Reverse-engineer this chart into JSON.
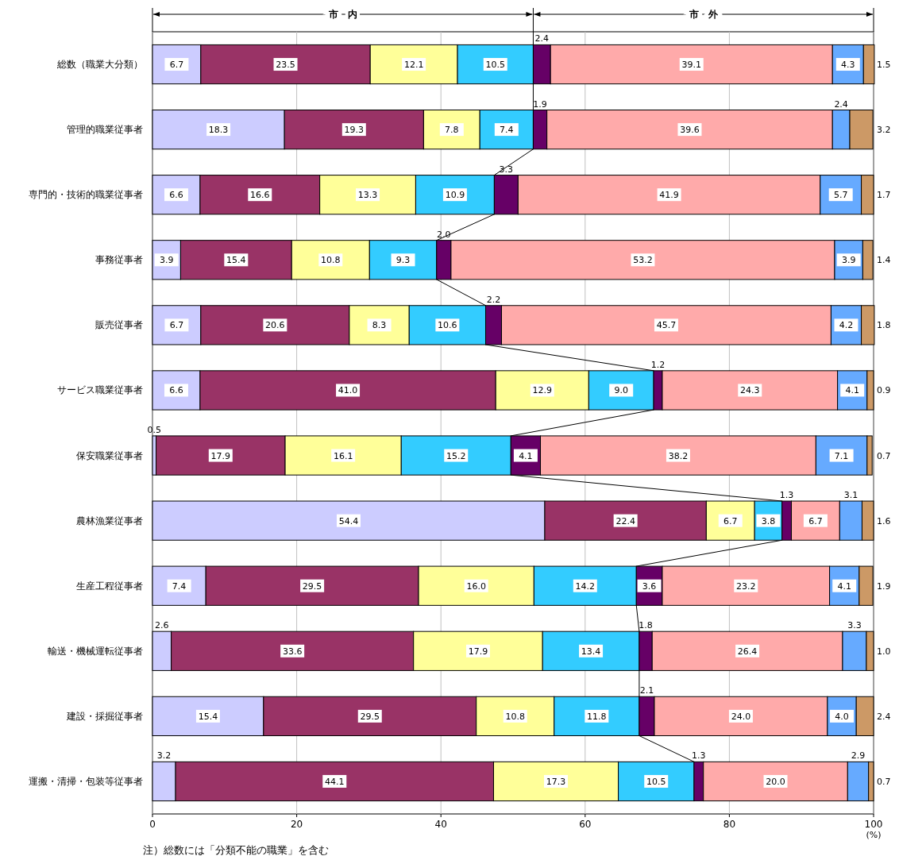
{
  "chart_data": {
    "type": "bar",
    "orientation": "horizontal",
    "stacked": true,
    "grid": "x",
    "categories": [
      "総数（職業大分類）",
      "管理的職業従事者",
      "専門的・技術的職業従事者",
      "事務従事者",
      "販売従事者",
      "サービス職業従事者",
      "保安職業従事者",
      "農林漁業従事者",
      "生産工程従事者",
      "輸送・機械運転従事者",
      "建設・採掘従事者",
      "運搬・清掃・包装等従事者"
    ],
    "xlim": [
      0,
      100
    ],
    "xticks": [
      0,
      20,
      40,
      60,
      80,
      100
    ],
    "xlabel": "(%)",
    "annotations": [
      "市　内",
      "市　外",
      "注）総数には「分類不能の職業」を含む"
    ],
    "series": [
      {
        "color": "#ccccff",
        "values": [
          6.7,
          18.3,
          6.6,
          3.9,
          6.7,
          6.6,
          0.5,
          54.4,
          7.4,
          2.6,
          15.4,
          3.2
        ],
        "value_labels": [
          "6.7",
          "18.3",
          "6.6",
          "3.9",
          "6.7",
          "6.6",
          "0.5",
          "54.4",
          "7.4",
          "2.6",
          "15.4",
          "3.2"
        ]
      },
      {
        "color": "#993366",
        "values": [
          23.5,
          19.3,
          16.6,
          15.4,
          20.6,
          41.0,
          17.9,
          22.4,
          29.5,
          33.6,
          29.5,
          44.1
        ],
        "value_labels": [
          "23.5",
          "19.3",
          "16.6",
          "15.4",
          "20.6",
          "41.0",
          "17.9",
          "22.4",
          "29.5",
          "33.6",
          "29.5",
          "44.1"
        ]
      },
      {
        "color": "#ffff99",
        "values": [
          12.1,
          7.8,
          13.3,
          10.8,
          8.3,
          12.9,
          16.1,
          6.7,
          16.0,
          17.9,
          10.8,
          17.3
        ],
        "value_labels": [
          "12.1",
          "7.8",
          "13.3",
          "10.8",
          "8.3",
          "12.9",
          "16.1",
          "6.7",
          "16.0",
          "17.9",
          "10.8",
          "17.3"
        ]
      },
      {
        "color": "#33ccff",
        "values": [
          10.5,
          7.4,
          10.9,
          9.3,
          10.6,
          9.0,
          15.2,
          3.8,
          14.2,
          13.4,
          11.8,
          10.5
        ],
        "value_labels": [
          "10.5",
          "7.4",
          "10.9",
          "9.3",
          "10.6",
          "9.0",
          "15.2",
          "3.8",
          "14.2",
          "13.4",
          "11.8",
          "10.5"
        ]
      },
      {
        "color": "#660066",
        "values": [
          2.4,
          1.9,
          3.3,
          2.0,
          2.2,
          1.2,
          4.1,
          1.3,
          3.6,
          1.8,
          2.1,
          1.3
        ],
        "value_labels": [
          "2.4",
          "1.9",
          "3.3",
          "2.0",
          "2.2",
          "1.2",
          "4.1",
          "1.3",
          "3.6",
          "1.8",
          "2.1",
          "1.3"
        ]
      },
      {
        "color": "#ffaaaa",
        "values": [
          39.1,
          39.6,
          41.9,
          53.2,
          45.7,
          24.3,
          38.2,
          6.7,
          23.2,
          26.4,
          24.0,
          20.0
        ],
        "value_labels": [
          "39.1",
          "39.6",
          "41.9",
          "53.2",
          "45.7",
          "24.3",
          "38.2",
          "6.7",
          "23.2",
          "26.4",
          "24.0",
          "20.0"
        ]
      },
      {
        "color": "#66aaff",
        "values": [
          4.3,
          2.4,
          5.7,
          3.9,
          4.2,
          4.1,
          7.1,
          3.1,
          4.1,
          3.3,
          4.0,
          2.9
        ],
        "value_labels": [
          "4.3",
          "2.4",
          "5.7",
          "3.9",
          "4.2",
          "4.1",
          "7.1",
          "3.1",
          "4.1",
          "3.3",
          "4.0",
          "2.9"
        ]
      },
      {
        "color": "#cc9966",
        "values": [
          1.5,
          3.2,
          1.7,
          1.4,
          1.8,
          0.9,
          0.7,
          1.6,
          1.9,
          1.0,
          2.4,
          0.7
        ],
        "value_labels": [
          "1.5",
          "3.2",
          "1.7",
          "1.4",
          "1.8",
          "0.9",
          "0.7",
          "1.6",
          "1.9",
          "1.0",
          "2.4",
          "0.7"
        ]
      }
    ]
  }
}
